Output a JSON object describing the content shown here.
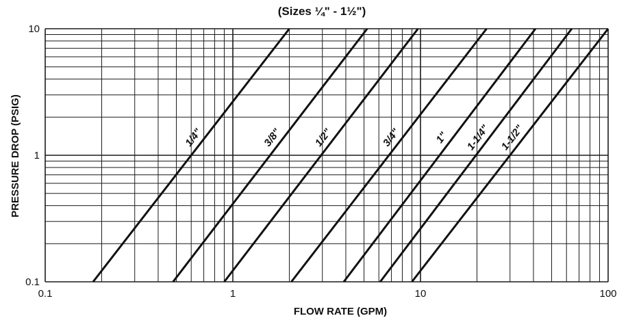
{
  "chart_data": {
    "type": "line",
    "title": "(Sizes ¼\" - 1½\")",
    "xlabel": "FLOW RATE (GPM)",
    "ylabel": "PRESSURE DROP (PSIG)",
    "xscale": "log",
    "yscale": "log",
    "xlim": [
      0.1,
      100
    ],
    "ylim": [
      0.1,
      10
    ],
    "xticks": [
      "0.1",
      "1",
      "10",
      "100"
    ],
    "yticks": [
      "0.1",
      "1",
      "10"
    ],
    "grid": true,
    "legend": "none",
    "series": [
      {
        "name": "1/4\"",
        "x": [
          0.18,
          2.0
        ],
        "y": [
          0.1,
          10
        ]
      },
      {
        "name": "3/8\"",
        "x": [
          0.48,
          5.2
        ],
        "y": [
          0.1,
          10
        ]
      },
      {
        "name": "1/2\"",
        "x": [
          0.9,
          9.7
        ],
        "y": [
          0.1,
          10
        ]
      },
      {
        "name": "3/4\"",
        "x": [
          2.05,
          22.5
        ],
        "y": [
          0.1,
          10
        ]
      },
      {
        "name": "1\"",
        "x": [
          3.9,
          41
        ],
        "y": [
          0.1,
          10
        ]
      },
      {
        "name": "1-1/4\"",
        "x": [
          6.1,
          64
        ],
        "y": [
          0.1,
          10
        ]
      },
      {
        "name": "1-1/2\"",
        "x": [
          9.0,
          100
        ],
        "y": [
          0.1,
          10
        ]
      }
    ]
  }
}
